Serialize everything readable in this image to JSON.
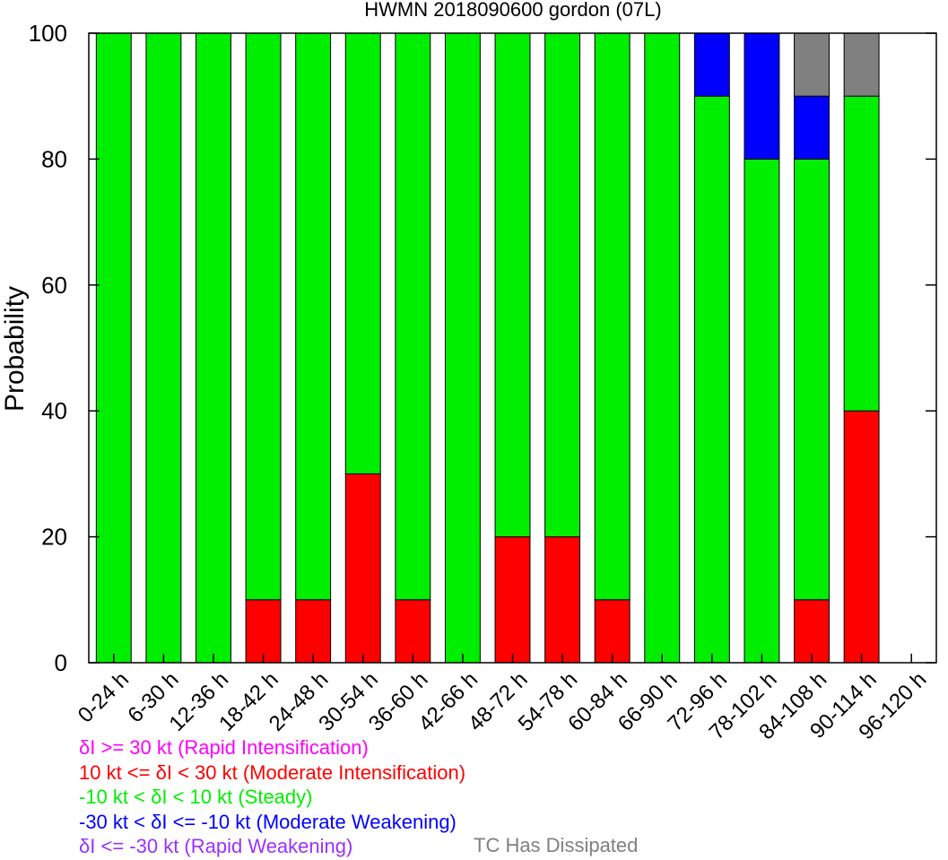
{
  "chart_data": {
    "type": "bar",
    "stacked": true,
    "title": "HWMN 2018090600 gordon (07L)",
    "xlabel": "",
    "ylabel": "Probability",
    "ylim": [
      0,
      100
    ],
    "yticks": [
      0,
      20,
      40,
      60,
      80,
      100
    ],
    "grid": false,
    "categories": [
      "0-24 h",
      "6-30 h",
      "12-36 h",
      "18-42 h",
      "24-48 h",
      "30-54 h",
      "36-60 h",
      "42-66 h",
      "48-72 h",
      "54-78 h",
      "60-84 h",
      "66-90 h",
      "72-96 h",
      "78-102 h",
      "84-108 h",
      "90-114 h",
      "96-120 h"
    ],
    "series": [
      {
        "key": "ri",
        "color": "#ff00ff",
        "values": [
          0,
          0,
          0,
          0,
          0,
          0,
          0,
          0,
          0,
          0,
          0,
          0,
          0,
          0,
          0,
          0,
          0
        ]
      },
      {
        "key": "mi",
        "color": "#ff0000",
        "values": [
          0,
          0,
          0,
          10,
          10,
          30,
          10,
          0,
          20,
          20,
          10,
          0,
          0,
          0,
          10,
          40,
          0
        ]
      },
      {
        "key": "steady",
        "color": "#00ee00",
        "values": [
          100,
          100,
          100,
          90,
          90,
          70,
          90,
          100,
          80,
          80,
          90,
          100,
          90,
          80,
          70,
          50,
          0
        ]
      },
      {
        "key": "mw",
        "color": "#0000ff",
        "values": [
          0,
          0,
          0,
          0,
          0,
          0,
          0,
          0,
          0,
          0,
          0,
          0,
          10,
          20,
          10,
          0,
          0
        ]
      },
      {
        "key": "rw",
        "color": "#9b30ff",
        "values": [
          0,
          0,
          0,
          0,
          0,
          0,
          0,
          0,
          0,
          0,
          0,
          0,
          0,
          0,
          0,
          0,
          0
        ]
      },
      {
        "key": "dissipated",
        "color": "#808080",
        "values": [
          0,
          0,
          0,
          0,
          0,
          0,
          0,
          0,
          0,
          0,
          0,
          0,
          0,
          0,
          10,
          10,
          0
        ]
      }
    ]
  },
  "legend": {
    "ri": {
      "text": "δI >= 30 kt (Rapid Intensification)",
      "color": "#ff00ff"
    },
    "mi": {
      "text": "10 kt <= δI < 30 kt (Moderate Intensification)",
      "color": "#ff0000"
    },
    "steady": {
      "text": "-10 kt < δI < 10 kt (Steady)",
      "color": "#00ee00"
    },
    "mw": {
      "text": "-30 kt < δI <= -10 kt (Moderate Weakening)",
      "color": "#0000ff"
    },
    "rw": {
      "text": "δI <= -30 kt (Rapid Weakening)",
      "color": "#9b30ff"
    },
    "dissipated": {
      "text": "TC Has Dissipated",
      "color": "#808080"
    }
  }
}
